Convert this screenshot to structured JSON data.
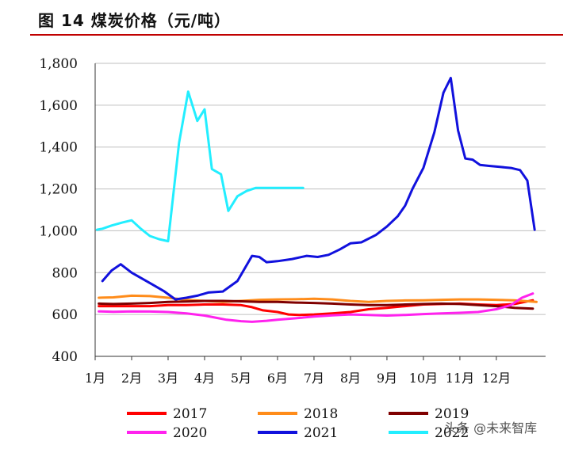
{
  "header": {
    "title": "图 14 煤炭价格（元/吨）"
  },
  "watermark": {
    "text": "头条 @未来智库"
  },
  "colors": {
    "s2017": "#ff0000",
    "s2018": "#ff8c1a",
    "s2019": "#7f0000",
    "s2020": "#ff22ee",
    "s2021": "#1111dd",
    "s2022": "#22eeff"
  },
  "chart_data": {
    "type": "line",
    "title": "煤炭价格（元/吨）",
    "xlabel": "",
    "ylabel": "",
    "xlim": [
      1,
      13.35
    ],
    "ylim": [
      400,
      1800
    ],
    "yticks": [
      400,
      600,
      800,
      1000,
      1200,
      1400,
      1600,
      1800
    ],
    "ytick_labels": [
      "400",
      "600",
      "800",
      "1,000",
      "1,200",
      "1,400",
      "1,600",
      "1,800"
    ],
    "xticks": [
      1,
      2,
      3,
      4,
      5,
      6,
      7,
      8,
      9,
      10,
      11,
      12
    ],
    "xtick_labels": [
      "1月",
      "2月",
      "3月",
      "4月",
      "5月",
      "6月",
      "7月",
      "8月",
      "9月",
      "10月",
      "11月",
      "12月"
    ],
    "grid": true,
    "legend_position": "bottom",
    "series": [
      {
        "name": "2017",
        "color_key": "s2017",
        "x": [
          1.1,
          1.5,
          2,
          2.5,
          3,
          3.5,
          4,
          4.5,
          5,
          5.3,
          5.6,
          6,
          6.3,
          6.6,
          7,
          7.5,
          8,
          8.5,
          9,
          9.5,
          10,
          10.5,
          11,
          11.5,
          12,
          12.5,
          13
        ],
        "y": [
          640,
          640,
          640,
          640,
          645,
          645,
          648,
          648,
          645,
          635,
          620,
          612,
          600,
          598,
          600,
          605,
          612,
          625,
          632,
          640,
          648,
          650,
          652,
          648,
          645,
          650,
          668
        ]
      },
      {
        "name": "2018",
        "color_key": "s2018",
        "x": [
          1.1,
          1.5,
          2,
          2.5,
          3,
          3.5,
          4,
          4.5,
          5,
          5.5,
          6,
          6.5,
          7,
          7.5,
          8,
          8.5,
          9,
          9.5,
          10,
          10.5,
          11,
          11.5,
          12,
          12.5,
          13.1
        ],
        "y": [
          680,
          682,
          690,
          688,
          680,
          670,
          665,
          660,
          665,
          670,
          672,
          673,
          675,
          672,
          665,
          660,
          665,
          667,
          668,
          670,
          672,
          672,
          670,
          668,
          660
        ]
      },
      {
        "name": "2019",
        "color_key": "s2019",
        "x": [
          1.1,
          1.5,
          2,
          2.5,
          3,
          3.5,
          4,
          4.5,
          5,
          5.5,
          6,
          6.5,
          7,
          7.5,
          8,
          8.5,
          9,
          9.5,
          10,
          10.5,
          11,
          11.5,
          12,
          12.5,
          13
        ],
        "y": [
          652,
          650,
          652,
          655,
          660,
          662,
          665,
          665,
          663,
          660,
          660,
          657,
          655,
          652,
          648,
          645,
          645,
          648,
          650,
          652,
          650,
          645,
          640,
          632,
          628
        ]
      },
      {
        "name": "2020",
        "color_key": "s2020",
        "x": [
          1.1,
          1.5,
          2,
          2.5,
          3,
          3.5,
          4,
          4.3,
          4.6,
          5,
          5.3,
          5.7,
          6,
          6.5,
          7,
          7.5,
          8,
          8.5,
          9,
          9.5,
          10,
          10.5,
          11,
          11.5,
          12,
          12.4,
          12.7,
          13
        ],
        "y": [
          615,
          613,
          615,
          614,
          612,
          605,
          595,
          585,
          575,
          568,
          565,
          570,
          575,
          582,
          590,
          596,
          600,
          598,
          595,
          598,
          602,
          605,
          608,
          612,
          625,
          645,
          680,
          700
        ]
      },
      {
        "name": "2021",
        "color_key": "s2021",
        "x": [
          1.2,
          1.45,
          1.7,
          2,
          2.3,
          2.6,
          2.9,
          3.2,
          3.5,
          3.8,
          4.1,
          4.5,
          4.9,
          5.3,
          5.5,
          5.7,
          6,
          6.4,
          6.8,
          7.1,
          7.4,
          7.7,
          8,
          8.3,
          8.7,
          9,
          9.3,
          9.5,
          9.7,
          10,
          10.3,
          10.55,
          10.75,
          10.95,
          11.15,
          11.35,
          11.55,
          11.8,
          12.1,
          12.4,
          12.65,
          12.85,
          13.05
        ],
        "y": [
          760,
          810,
          840,
          800,
          770,
          740,
          710,
          672,
          680,
          690,
          705,
          710,
          760,
          880,
          875,
          850,
          855,
          865,
          880,
          875,
          885,
          910,
          940,
          945,
          980,
          1020,
          1070,
          1120,
          1200,
          1300,
          1470,
          1660,
          1730,
          1480,
          1345,
          1340,
          1315,
          1310,
          1305,
          1300,
          1290,
          1240,
          1005
        ]
      },
      {
        "name": "2022",
        "color_key": "s2022",
        "x": [
          1.05,
          1.2,
          1.45,
          1.75,
          2.0,
          2.25,
          2.5,
          2.75,
          3.0,
          3.3,
          3.55,
          3.8,
          4.0,
          4.2,
          4.45,
          4.65,
          4.9,
          5.15,
          5.4,
          5.7,
          6.0,
          6.4,
          6.7
        ],
        "y": [
          1005,
          1010,
          1025,
          1040,
          1050,
          1010,
          975,
          960,
          950,
          1420,
          1665,
          1525,
          1580,
          1295,
          1270,
          1095,
          1165,
          1190,
          1205,
          1205,
          1205,
          1205,
          1205
        ]
      }
    ]
  }
}
